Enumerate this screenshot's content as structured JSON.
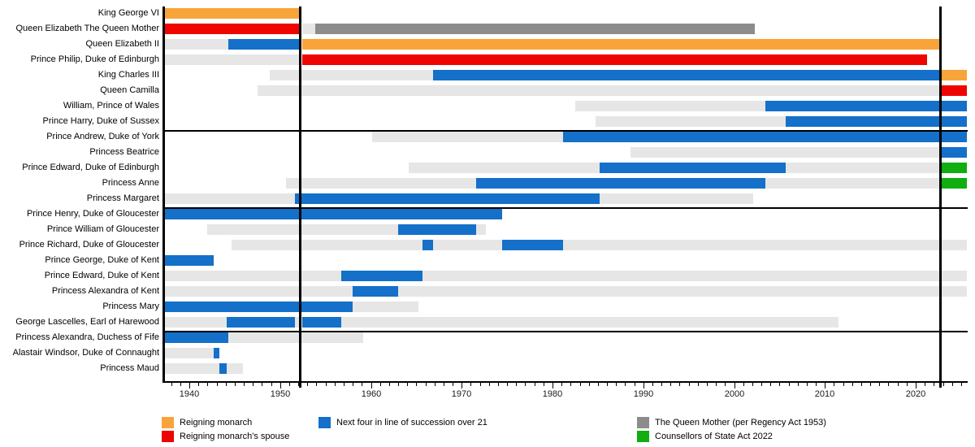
{
  "chart_data": {
    "type": "bar",
    "variant": "gantt-timeline",
    "title": "",
    "colors": {
      "monarch": "#F8A43A",
      "spouse": "#EE0400",
      "succession": "#1470C8",
      "qm_regency": "#8C8C8C",
      "state_act": "#10AE10",
      "alive": "#E6E6E6"
    },
    "x_axis": {
      "unit": "year",
      "min": 1937.3,
      "max": 2025.6,
      "minor_tick_start": 1938,
      "minor_tick_end": 2025,
      "minor_tick_step": 1,
      "major_ticks": [
        1940,
        1950,
        1960,
        1970,
        1980,
        1990,
        2000,
        2010,
        2020
      ],
      "major_tick_labels": [
        "1940",
        "1950",
        "1960",
        "1970",
        "1980",
        "1990",
        "2000",
        "2010",
        "2020"
      ]
    },
    "event_lines": [
      {
        "year": 1952.2
      },
      {
        "year": 2022.7
      }
    ],
    "group_dividers_after_rows": [
      7,
      12,
      20
    ],
    "rows": [
      {
        "label": "King George VI",
        "segments": [
          [
            1937.3,
            1952.1,
            "monarch"
          ]
        ]
      },
      {
        "label": "Queen Elizabeth The Queen Mother",
        "segments": [
          [
            1937.3,
            1952.1,
            "spouse"
          ],
          [
            1952.4,
            1953.85,
            "alive"
          ],
          [
            1953.85,
            2002.25,
            "qm_regency"
          ]
        ]
      },
      {
        "label": "Queen Elizabeth II",
        "segments": [
          [
            1937.3,
            1944.3,
            "alive"
          ],
          [
            1944.3,
            1952.1,
            "succession"
          ],
          [
            1952.4,
            2022.68,
            "monarch"
          ]
        ]
      },
      {
        "label": "Prince Philip, Duke of Edinburgh",
        "segments": [
          [
            1937.3,
            1952.1,
            "alive"
          ],
          [
            1952.4,
            2021.27,
            "spouse"
          ]
        ]
      },
      {
        "label": "King Charles III",
        "segments": [
          [
            1948.88,
            1966.87,
            "alive"
          ],
          [
            1966.87,
            2022.68,
            "succession"
          ],
          [
            2022.75,
            2025.6,
            "monarch"
          ]
        ]
      },
      {
        "label": "Queen Camilla",
        "segments": [
          [
            1947.55,
            2022.68,
            "alive"
          ],
          [
            2022.75,
            2025.6,
            "spouse"
          ]
        ]
      },
      {
        "label": "William, Prince of Wales",
        "segments": [
          [
            1982.47,
            2003.47,
            "alive"
          ],
          [
            2003.47,
            2025.6,
            "succession"
          ]
        ]
      },
      {
        "label": "Prince Harry, Duke of Sussex",
        "segments": [
          [
            1984.71,
            2005.71,
            "alive"
          ],
          [
            2005.71,
            2025.6,
            "succession"
          ]
        ]
      },
      {
        "label": "Prince Andrew, Duke of York",
        "segments": [
          [
            1960.12,
            1981.12,
            "alive"
          ],
          [
            1981.12,
            2025.6,
            "succession"
          ]
        ]
      },
      {
        "label": "Princess Beatrice",
        "segments": [
          [
            1988.63,
            2022.68,
            "alive"
          ],
          [
            2022.75,
            2025.6,
            "succession"
          ]
        ]
      },
      {
        "label": "Prince Edward, Duke of Edinburgh",
        "segments": [
          [
            1964.19,
            1985.19,
            "alive"
          ],
          [
            1985.19,
            2005.71,
            "succession"
          ],
          [
            2005.71,
            2022.68,
            "alive"
          ],
          [
            2022.75,
            2025.6,
            "state_act"
          ]
        ]
      },
      {
        "label": "Princess Anne",
        "segments": [
          [
            1950.62,
            1971.62,
            "alive"
          ],
          [
            1971.62,
            2003.47,
            "succession"
          ],
          [
            2003.47,
            2022.68,
            "alive"
          ],
          [
            2022.75,
            2025.6,
            "state_act"
          ]
        ]
      },
      {
        "label": "Princess Margaret",
        "segments": [
          [
            1937.3,
            1951.65,
            "alive"
          ],
          [
            1951.65,
            1985.19,
            "succession"
          ],
          [
            1985.19,
            2002.1,
            "alive"
          ]
        ]
      },
      {
        "label": "Prince Henry, Duke of Gloucester",
        "segments": [
          [
            1937.3,
            1974.44,
            "succession"
          ]
        ]
      },
      {
        "label": "Prince William of Gloucester",
        "segments": [
          [
            1941.96,
            1962.98,
            "alive"
          ],
          [
            1962.98,
            1971.62,
            "succession"
          ],
          [
            1971.62,
            1972.66,
            "alive"
          ]
        ]
      },
      {
        "label": "Prince Richard, Duke of Gloucester",
        "segments": [
          [
            1944.65,
            1965.65,
            "alive"
          ],
          [
            1965.65,
            1966.87,
            "succession"
          ],
          [
            1966.87,
            1974.44,
            "alive"
          ],
          [
            1974.44,
            1981.12,
            "succession"
          ],
          [
            1981.12,
            2025.6,
            "alive"
          ]
        ]
      },
      {
        "label": "Prince George, Duke of Kent",
        "segments": [
          [
            1937.3,
            1942.65,
            "succession"
          ]
        ]
      },
      {
        "label": "Prince Edward, Duke of Kent",
        "segments": [
          [
            1937.3,
            1956.77,
            "alive"
          ],
          [
            1956.77,
            1965.65,
            "succession"
          ],
          [
            1965.65,
            2025.6,
            "alive"
          ]
        ]
      },
      {
        "label": "Princess Alexandra of Kent",
        "segments": [
          [
            1937.3,
            1957.98,
            "alive"
          ],
          [
            1957.98,
            1962.98,
            "succession"
          ],
          [
            1962.98,
            2025.6,
            "alive"
          ]
        ]
      },
      {
        "label": "Princess Mary",
        "segments": [
          [
            1937.3,
            1957.98,
            "succession"
          ],
          [
            1957.98,
            1965.22,
            "alive"
          ]
        ]
      },
      {
        "label": "George Lascelles, Earl of Harewood",
        "segments": [
          [
            1937.3,
            1944.1,
            "alive"
          ],
          [
            1944.1,
            1951.65,
            "succession"
          ],
          [
            1951.65,
            1952.4,
            "alive"
          ],
          [
            1952.4,
            1956.77,
            "succession"
          ],
          [
            1956.77,
            2011.53,
            "alive"
          ]
        ]
      },
      {
        "label": "Princess Alexandra, Duchess of Fife",
        "segments": [
          [
            1937.3,
            1944.31,
            "succession"
          ],
          [
            1944.31,
            1959.12,
            "alive"
          ]
        ]
      },
      {
        "label": "Alastair Windsor, Duke of Connaught",
        "segments": [
          [
            1937.3,
            1942.65,
            "alive"
          ],
          [
            1942.65,
            1943.32,
            "succession"
          ]
        ]
      },
      {
        "label": "Princess Maud",
        "segments": [
          [
            1937.3,
            1943.32,
            "alive"
          ],
          [
            1943.32,
            1944.1,
            "succession"
          ],
          [
            1944.1,
            1945.95,
            "alive"
          ]
        ]
      }
    ],
    "legend": [
      {
        "color_key": "monarch",
        "label": "Reigning monarch"
      },
      {
        "color_key": "spouse",
        "label": "Reigning monarch's spouse"
      },
      {
        "color_key": "succession",
        "label": "Next four in line of succession over 21"
      },
      {
        "color_key": "qm_regency",
        "label": "The Queen Mother (per Regency Act 1953)"
      },
      {
        "color_key": "state_act",
        "label": "Counsellors of State Act 2022"
      }
    ]
  }
}
